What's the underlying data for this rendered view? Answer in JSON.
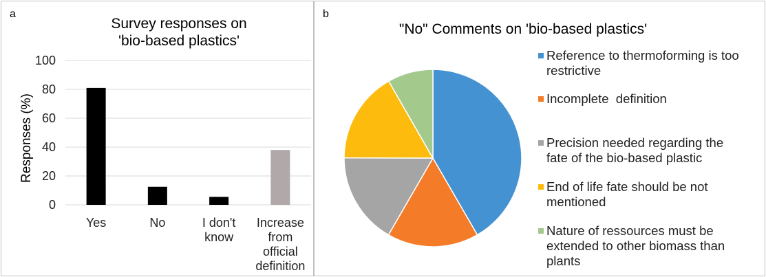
{
  "chart_data": [
    {
      "type": "bar",
      "panel_label": "a",
      "title": "Survey responses on\n'bio-based plastics'",
      "title_lines": [
        "Survey responses on",
        "'bio-based plastics'"
      ],
      "ylabel": "Responses (%)",
      "xlabel": "",
      "ylim": [
        0,
        100
      ],
      "yticks": [
        0,
        20,
        40,
        60,
        80,
        100
      ],
      "grid": true,
      "categories": [
        "Yes",
        "No",
        "I don't know",
        "Increase from official definition"
      ],
      "category_lines": [
        [
          "Yes"
        ],
        [
          "No"
        ],
        [
          "I don't",
          "know"
        ],
        [
          "Increase",
          "from",
          "official",
          "definition"
        ]
      ],
      "values": [
        81,
        12.5,
        5.5,
        38
      ],
      "colors": [
        "#000000",
        "#000000",
        "#000000",
        "#b1a9a9"
      ]
    },
    {
      "type": "pie",
      "panel_label": "b",
      "title": "\"No\" Comments on 'bio-based plastics'",
      "labels": [
        "Reference to thermoforming is too restrictive",
        "Incomplete  definition",
        "Precision needed regarding the fate of the bio-based plastic",
        "End of life fate should be not mentioned",
        "Nature of ressources must be extended to other biomass than plants"
      ],
      "label_lines": [
        [
          "Reference to thermoforming is too",
          "restrictive"
        ],
        [
          "Incomplete  definition"
        ],
        [
          "Precision needed regarding the",
          "fate of the bio-based plastic"
        ],
        [
          "End of life fate should be not",
          "mentioned"
        ],
        [
          "Nature of ressources must be",
          "extended to other biomass than",
          "plants"
        ]
      ],
      "values": [
        41.7,
        16.7,
        16.7,
        16.7,
        8.3
      ],
      "colors": [
        "#4492d2",
        "#f47c28",
        "#a5a5a5",
        "#fdbc0d",
        "#a4c98c"
      ],
      "legend": "right"
    }
  ]
}
